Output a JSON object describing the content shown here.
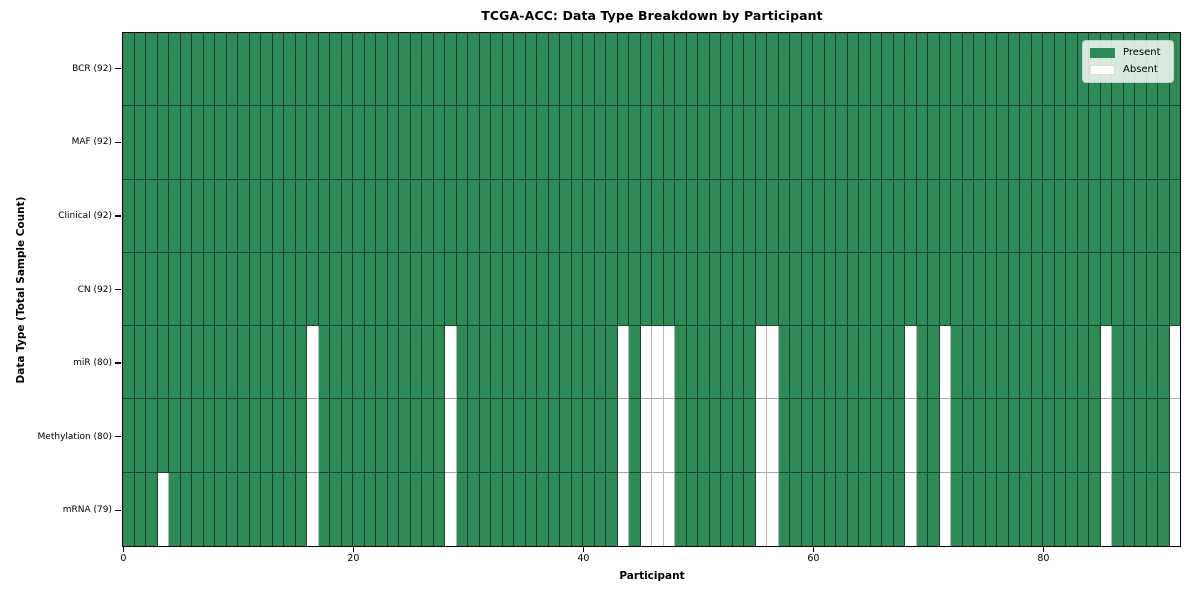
{
  "chart_data": {
    "type": "heatmap",
    "title": "TCGA-ACC: Data Type Breakdown by Participant",
    "xlabel": "Participant",
    "ylabel": "Data Type (Total Sample Count)",
    "x_ticks": [
      0,
      20,
      40,
      60,
      80
    ],
    "x_range": [
      0,
      92
    ],
    "n_participants": 92,
    "grid": true,
    "legend_position": "upper right",
    "colors": {
      "present": "#2e8b57",
      "absent": "#ffffff",
      "grid": "#1a1a1a"
    },
    "legend": [
      {
        "label": "Present",
        "key": "present",
        "color": "#2e8b57"
      },
      {
        "label": "Absent",
        "key": "absent",
        "color": "#ffffff"
      }
    ],
    "rows": [
      {
        "label": "BCR (92)",
        "data_type": "BCR",
        "total": 92,
        "absent_participants": []
      },
      {
        "label": "MAF (92)",
        "data_type": "MAF",
        "total": 92,
        "absent_participants": []
      },
      {
        "label": "Clinical (92)",
        "data_type": "Clinical",
        "total": 92,
        "absent_participants": []
      },
      {
        "label": "CN (92)",
        "data_type": "CN",
        "total": 92,
        "absent_participants": []
      },
      {
        "label": "miR (80)",
        "data_type": "miR",
        "total": 80,
        "absent_participants": [
          16,
          28,
          43,
          45,
          46,
          47,
          55,
          56,
          68,
          71,
          85,
          91
        ]
      },
      {
        "label": "Methylation (80)",
        "data_type": "Methylation",
        "total": 80,
        "absent_participants": [
          16,
          28,
          43,
          45,
          46,
          47,
          55,
          56,
          68,
          71,
          85,
          91
        ]
      },
      {
        "label": "mRNA (79)",
        "data_type": "mRNA",
        "total": 79,
        "absent_participants": [
          3,
          16,
          28,
          43,
          45,
          46,
          47,
          55,
          56,
          68,
          71,
          85,
          91
        ]
      }
    ]
  }
}
